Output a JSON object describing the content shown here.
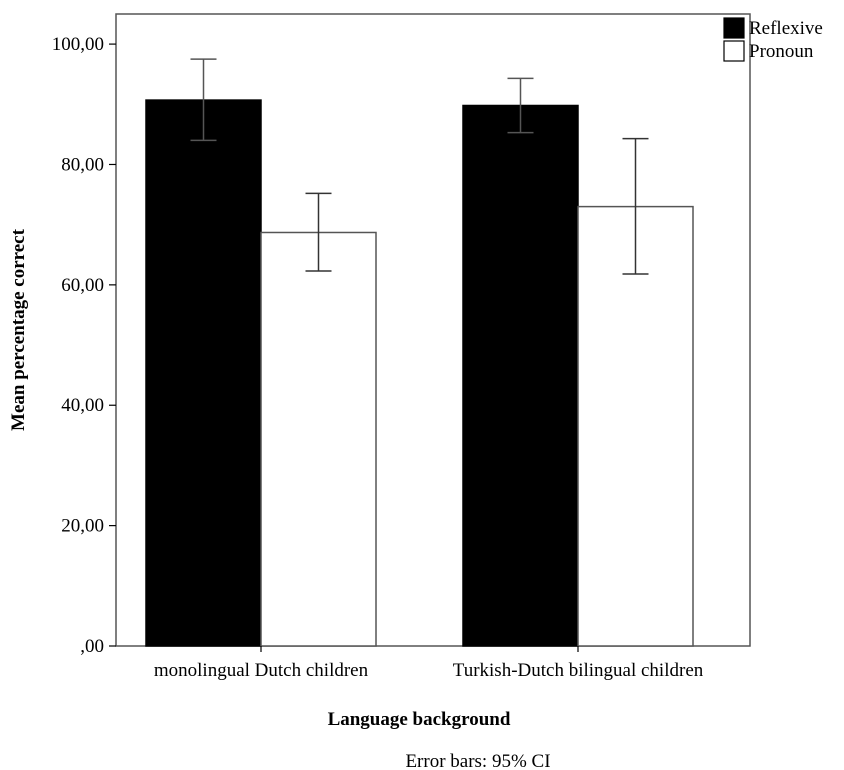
{
  "chart_data": {
    "type": "bar",
    "xlabel": "Language background",
    "ylabel": "Mean percentage correct",
    "categories": [
      "monolingual Dutch children",
      "Turkish-Dutch bilingual children"
    ],
    "series": [
      {
        "name": "Reflexive",
        "color": "#000000",
        "values": [
          90.7,
          89.8
        ],
        "ci_low": [
          84.0,
          85.3
        ],
        "ci_high": [
          97.5,
          94.3
        ]
      },
      {
        "name": "Pronoun",
        "color": "#ffffff",
        "values": [
          68.7,
          73.0
        ],
        "ci_low": [
          62.3,
          61.8
        ],
        "ci_high": [
          75.2,
          84.3
        ]
      }
    ],
    "ylim": [
      0,
      105
    ],
    "yticks": [
      0,
      20,
      40,
      60,
      80,
      100
    ],
    "ytick_labels": [
      ",00",
      "20,00",
      "40,00",
      "60,00",
      "80,00",
      "100,00"
    ],
    "legend_position": "top-right",
    "grid": false,
    "note": "Error bars: 95% CI"
  }
}
